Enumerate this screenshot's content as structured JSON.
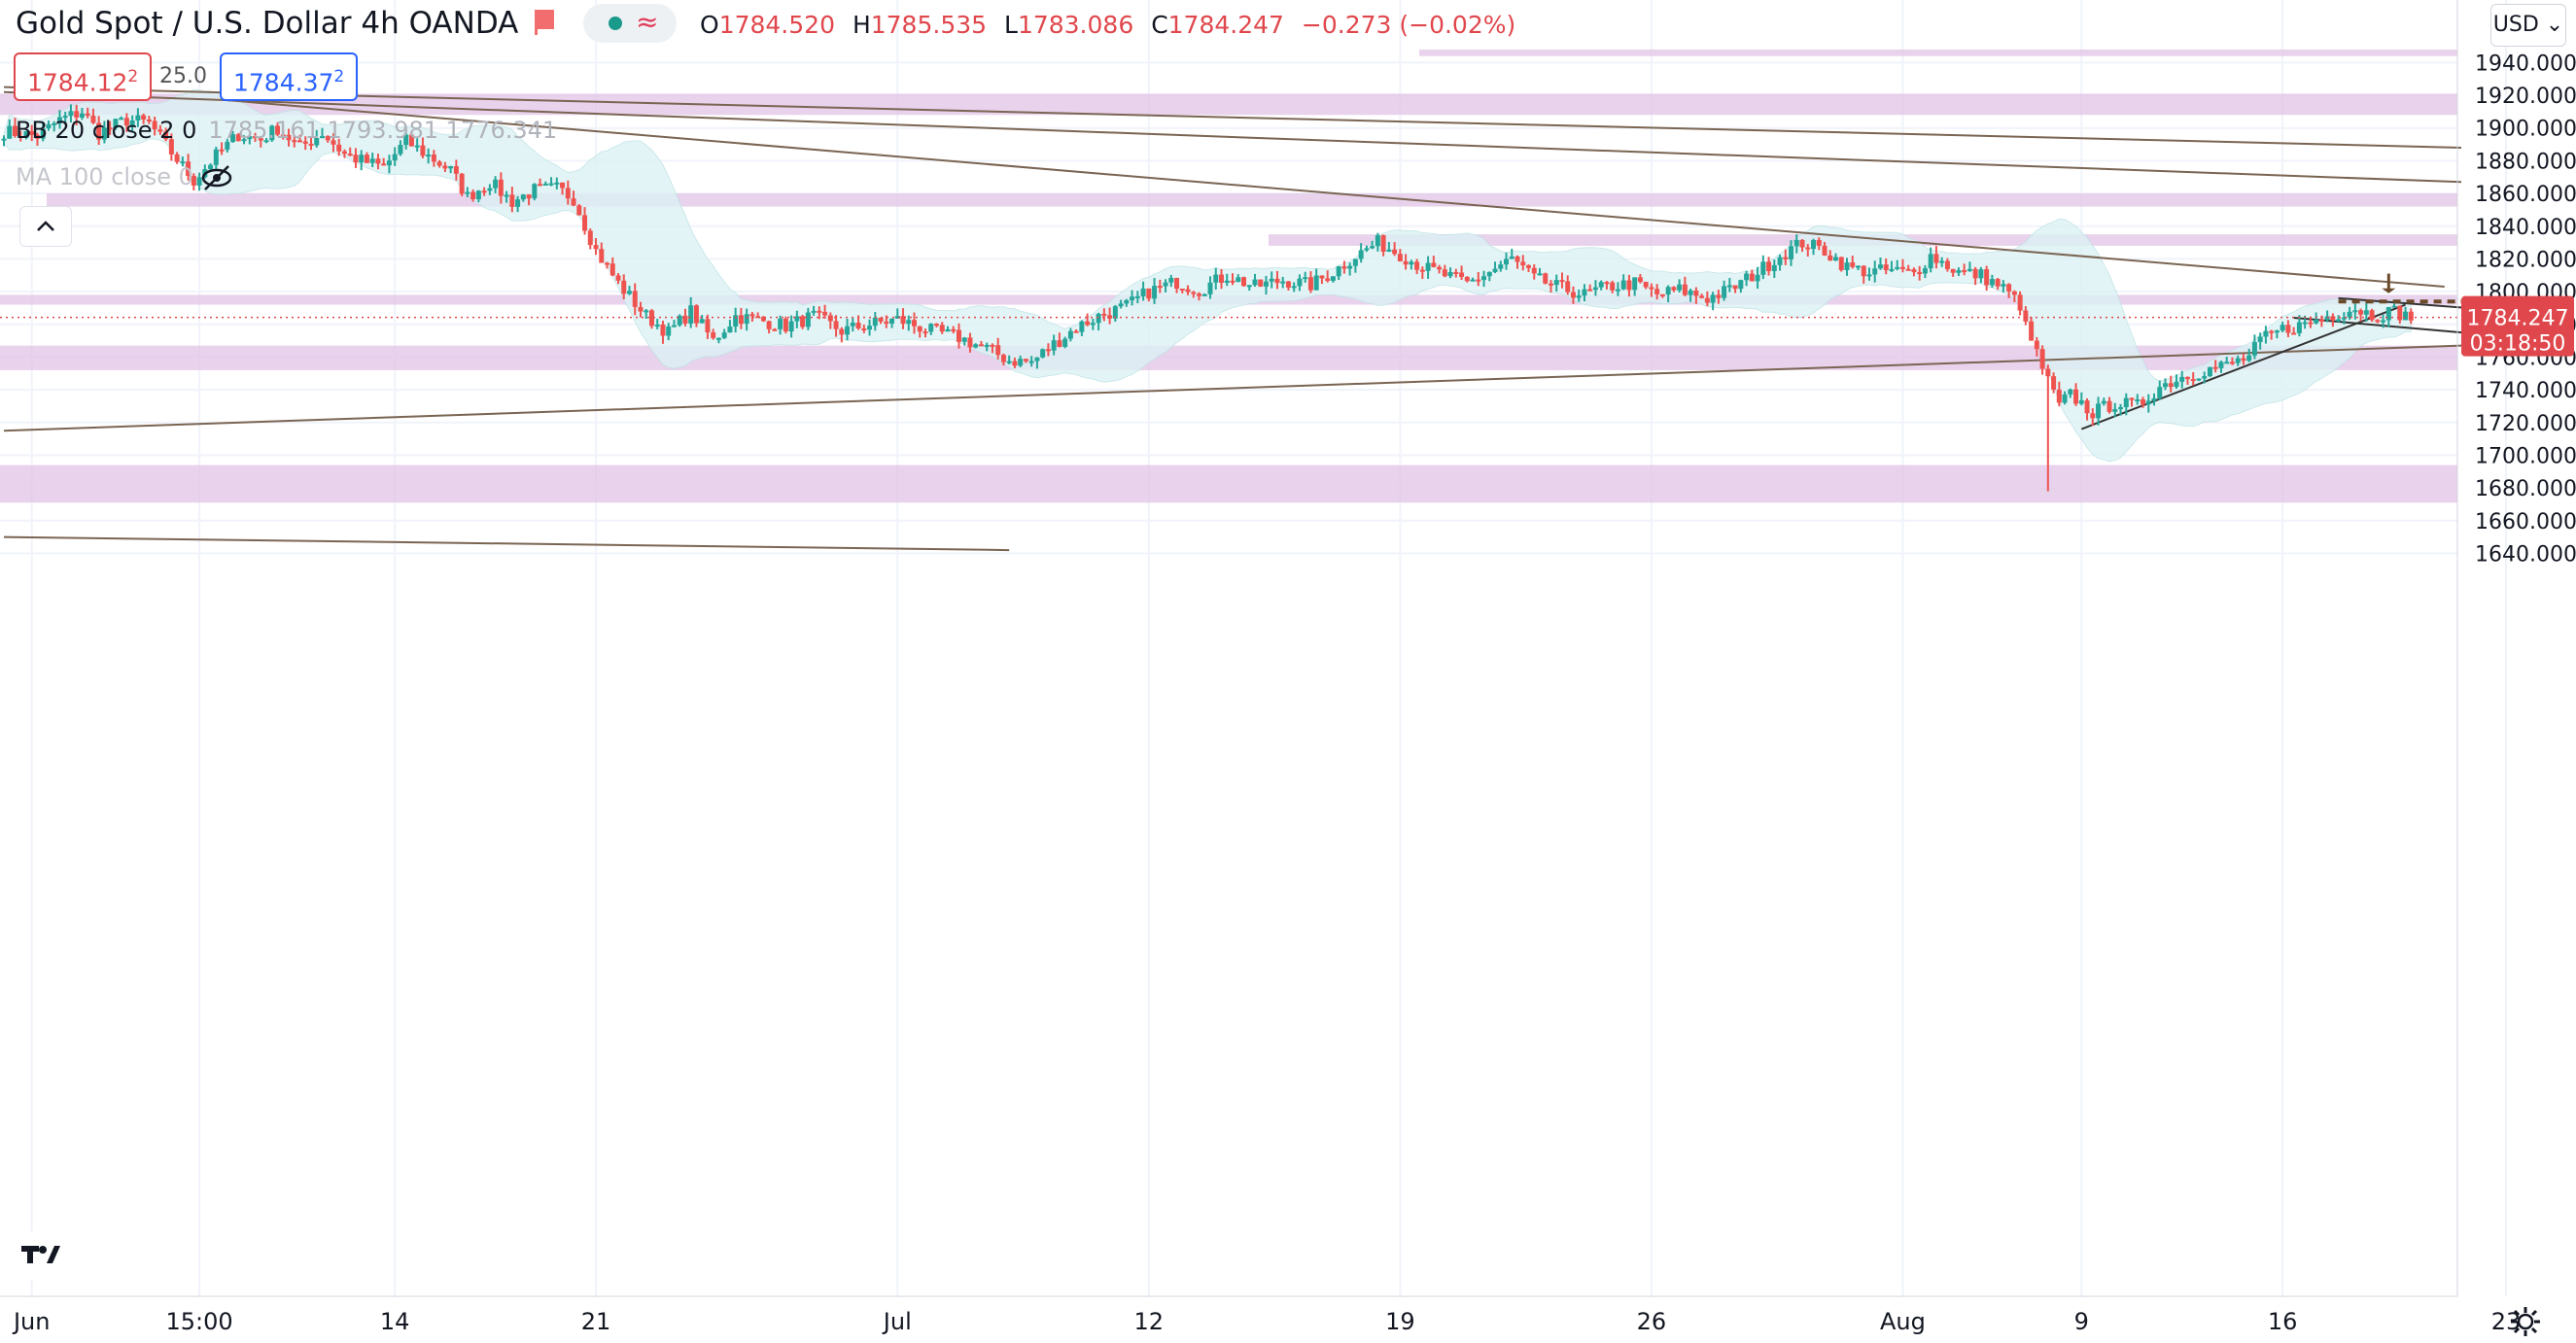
{
  "header": {
    "title": "Gold Spot / U.S. Dollar  4h  OANDA",
    "ohlc": [
      {
        "k": "O",
        "v": "1784.520"
      },
      {
        "k": "H",
        "v": "1785.535"
      },
      {
        "k": "L",
        "v": "1783.086"
      },
      {
        "k": "C",
        "v": "1784.247"
      }
    ],
    "change": "−0.273 (−0.02%)",
    "sell_price": "1784.12",
    "sell_sup": "2",
    "spread": "25.0",
    "buy_price": "1784.37",
    "buy_sup": "2"
  },
  "indicators": {
    "bb_label": "BB 20 close 2 0",
    "bb_values": "1785.161  1793.981  1776.341",
    "ma_label": "MA 100 close 0"
  },
  "currency_button": "USD",
  "colors": {
    "up": "#26a69a",
    "down": "#ef5350",
    "zone": "#e1c3e6",
    "bb_fill": "#ddf2f4",
    "trendline": "#7a6553",
    "price_tag": "#e0474c",
    "resistance_dash": "#6b4a2a"
  },
  "chart_data": {
    "type": "candlestick",
    "title": "Gold Spot / U.S. Dollar  4h  OANDA",
    "timeframe": "4h",
    "ylim": [
      1632,
      1947
    ],
    "x_tick_labels": [
      "Jun",
      "15:00",
      "14",
      "21",
      "Jul",
      "12",
      "19",
      "26",
      "Aug",
      "9",
      "16",
      "23"
    ],
    "y_tick_labels": [
      "1940.000",
      "1920.000",
      "1900.000",
      "1880.000",
      "1860.000",
      "1840.000",
      "1820.000",
      "1800.000",
      "1780.000",
      "1760.000",
      "1740.000",
      "1720.000",
      "1700.000",
      "1680.000",
      "1660.000",
      "1640.000"
    ],
    "last_price": "1784.247",
    "countdown": "03:18:50",
    "close_path": [
      [
        0,
        1898
      ],
      [
        6,
        1895
      ],
      [
        10,
        1905
      ],
      [
        14,
        1910
      ],
      [
        17,
        1897
      ],
      [
        22,
        1905
      ],
      [
        26,
        1903
      ],
      [
        30,
        1885
      ],
      [
        34,
        1868
      ],
      [
        38,
        1883
      ],
      [
        42,
        1896
      ],
      [
        46,
        1893
      ],
      [
        49,
        1900
      ],
      [
        53,
        1888
      ],
      [
        57,
        1897
      ],
      [
        61,
        1884
      ],
      [
        64,
        1880
      ],
      [
        68,
        1876
      ],
      [
        72,
        1892
      ],
      [
        76,
        1883
      ],
      [
        80,
        1874
      ],
      [
        83,
        1858
      ],
      [
        87,
        1867
      ],
      [
        91,
        1855
      ],
      [
        95,
        1862
      ],
      [
        99,
        1863
      ],
      [
        102,
        1857
      ],
      [
        106,
        1825
      ],
      [
        110,
        1805
      ],
      [
        115,
        1785
      ],
      [
        119,
        1775
      ],
      [
        123,
        1788
      ],
      [
        127,
        1770
      ],
      [
        131,
        1785
      ],
      [
        136,
        1782
      ],
      [
        140,
        1779
      ],
      [
        145,
        1785
      ],
      [
        150,
        1776
      ],
      [
        155,
        1780
      ],
      [
        160,
        1783
      ],
      [
        166,
        1776
      ],
      [
        171,
        1772
      ],
      [
        176,
        1765
      ],
      [
        180,
        1758
      ],
      [
        184,
        1757
      ],
      [
        188,
        1768
      ],
      [
        192,
        1778
      ],
      [
        196,
        1785
      ],
      [
        201,
        1791
      ],
      [
        205,
        1800
      ],
      [
        210,
        1806
      ],
      [
        214,
        1801
      ],
      [
        219,
        1810
      ],
      [
        224,
        1803
      ],
      [
        229,
        1807
      ],
      [
        234,
        1804
      ],
      [
        238,
        1812
      ],
      [
        242,
        1822
      ],
      [
        246,
        1830
      ],
      [
        250,
        1823
      ],
      [
        254,
        1815
      ],
      [
        258,
        1810
      ],
      [
        262,
        1805
      ],
      [
        266,
        1812
      ],
      [
        270,
        1820
      ],
      [
        274,
        1808
      ],
      [
        278,
        1803
      ],
      [
        283,
        1798
      ],
      [
        287,
        1803
      ],
      [
        292,
        1805
      ],
      [
        296,
        1798
      ],
      [
        300,
        1801
      ],
      [
        305,
        1796
      ],
      [
        309,
        1801
      ],
      [
        314,
        1812
      ],
      [
        318,
        1822
      ],
      [
        322,
        1830
      ],
      [
        326,
        1825
      ],
      [
        330,
        1815
      ],
      [
        334,
        1812
      ],
      [
        338,
        1813
      ],
      [
        342,
        1811
      ],
      [
        345,
        1822
      ],
      [
        350,
        1812
      ],
      [
        354,
        1810
      ],
      [
        358,
        1802
      ],
      [
        361,
        1792
      ],
      [
        362,
        1778
      ],
      [
        364,
        1762
      ],
      [
        366,
        1745
      ],
      [
        368,
        1730
      ],
      [
        370,
        1737
      ],
      [
        374,
        1726
      ],
      [
        378,
        1732
      ],
      [
        382,
        1730
      ],
      [
        386,
        1742
      ],
      [
        390,
        1748
      ],
      [
        394,
        1752
      ],
      [
        398,
        1755
      ],
      [
        402,
        1760
      ],
      [
        404,
        1770
      ],
      [
        408,
        1777
      ],
      [
        412,
        1780
      ],
      [
        416,
        1785
      ],
      [
        418,
        1787
      ],
      [
        421,
        1790
      ],
      [
        424,
        1786
      ],
      [
        428,
        1788
      ],
      [
        431,
        1784
      ]
    ],
    "zones": [
      {
        "y0": 1948,
        "y1": 1944
      },
      {
        "y0": 1921,
        "y1": 1908
      },
      {
        "y0": 1860,
        "y1": 1852
      },
      {
        "y0": 1835,
        "y1": 1828
      },
      {
        "y0": 1798,
        "y1": 1792
      },
      {
        "y0": 1767,
        "y1": 1752
      },
      {
        "y0": 1694,
        "y1": 1671
      }
    ]
  }
}
